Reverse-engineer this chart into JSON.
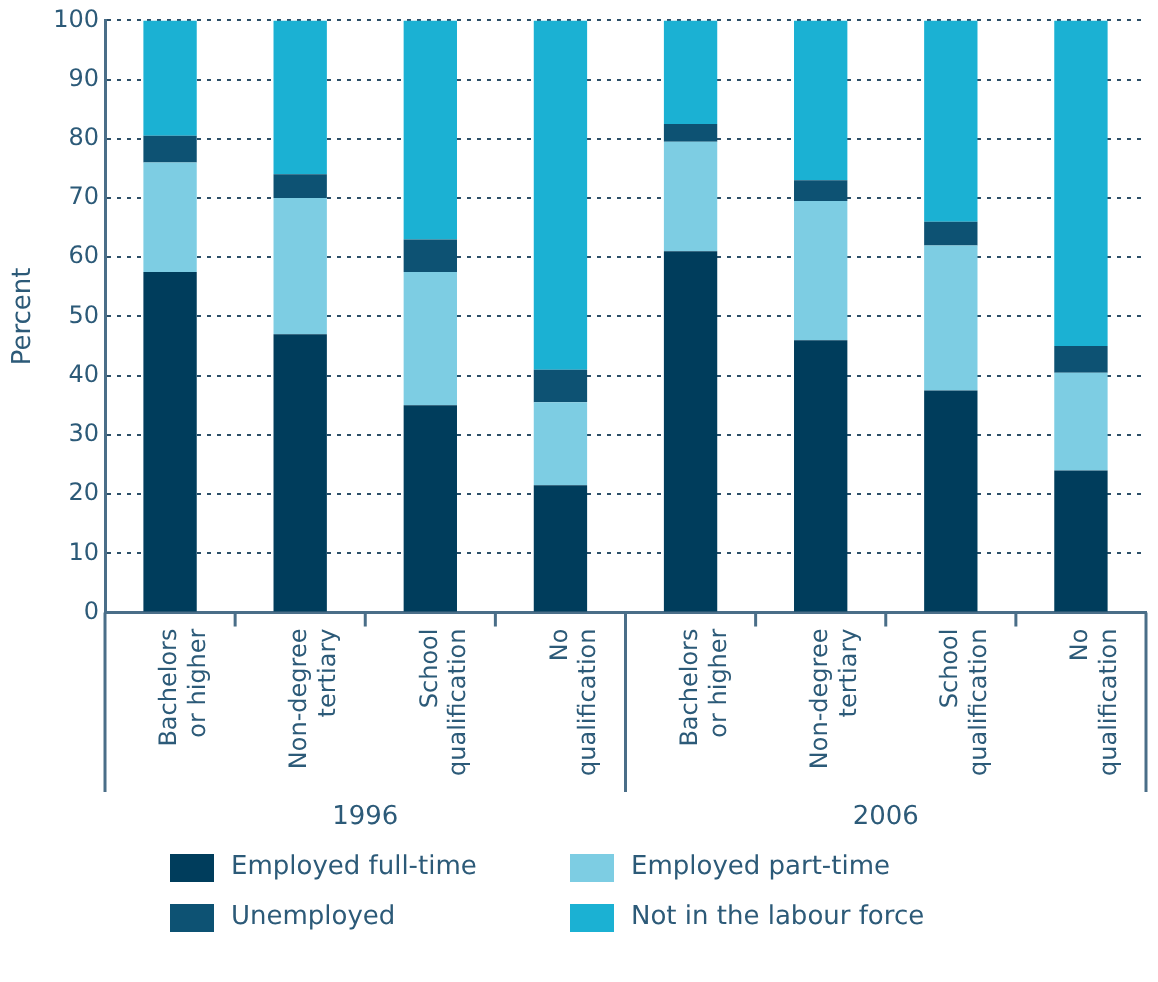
{
  "chart_data": {
    "type": "bar",
    "stacked": true,
    "ylabel": "Percent",
    "categories": [
      "Bachelors or higher",
      "Non-degree tertiary",
      "School qualification",
      "No qualification",
      "Bachelors or higher",
      "Non-degree tertiary",
      "School qualification",
      "No qualification"
    ],
    "series": [
      {
        "name": "Employed full-time",
        "color": "#003d5c",
        "values": [
          57.5,
          47,
          35,
          21.5,
          61,
          46,
          37.5,
          24
        ]
      },
      {
        "name": "Employed part-time",
        "color": "#7dcde3",
        "values": [
          18.5,
          23,
          22.5,
          14,
          18.5,
          23.5,
          24.5,
          16.5
        ]
      },
      {
        "name": "Unemployed",
        "color": "#0d5273",
        "values": [
          4.5,
          4,
          5.5,
          5.5,
          3,
          3.5,
          4,
          4.5
        ]
      },
      {
        "name": "Not in the labour force",
        "color": "#1bb1d3",
        "values": [
          19.5,
          26,
          37,
          59,
          17.5,
          27,
          34,
          55
        ]
      }
    ],
    "ylim": [
      0,
      100
    ],
    "yticks": [
      0,
      10,
      20,
      30,
      40,
      50,
      60,
      70,
      80,
      90,
      100
    ],
    "grid": "y",
    "legend": "bottom",
    "annotations": [
      "1996",
      "2006"
    ]
  }
}
